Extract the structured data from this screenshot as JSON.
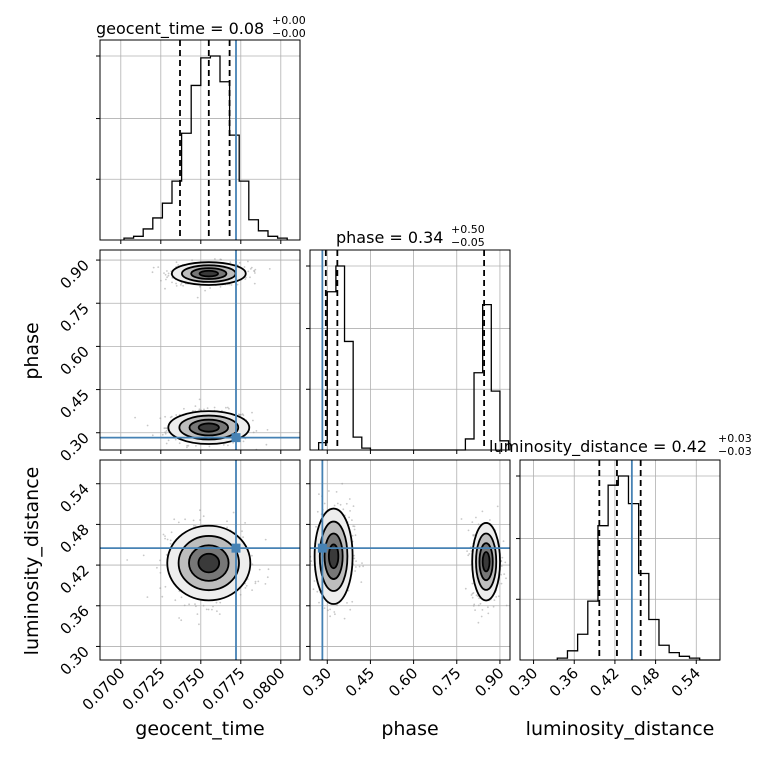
{
  "chart_data": {
    "type": "corner",
    "parameters": [
      "geocent_time",
      "phase",
      "luminosity_distance"
    ],
    "axis_labels": [
      "geocent_time",
      "phase",
      "luminosity_distance"
    ],
    "ranges": {
      "geocent_time": [
        0.0687,
        0.0812
      ],
      "phase": [
        0.24,
        0.935
      ],
      "luminosity_distance": [
        0.28,
        0.575
      ]
    },
    "ticks": {
      "geocent_time": [
        "0.0700",
        "0.0725",
        "0.0750",
        "0.0775",
        "0.0800"
      ],
      "phase": [
        "0.30",
        "0.45",
        "0.60",
        "0.75",
        "0.90"
      ],
      "luminosity_distance": [
        "0.30",
        "0.36",
        "0.42",
        "0.48",
        "0.54"
      ]
    },
    "truths": {
      "geocent_time": 0.0772,
      "phase": 0.283,
      "luminosity_distance": 0.445
    },
    "titles": {
      "geocent_time": {
        "text": "geocent_time = 0.08",
        "plus": "+0.00",
        "minus": "−0.00"
      },
      "phase": {
        "text": "phase = 0.34",
        "plus": "+0.50",
        "minus": "−0.05"
      },
      "luminosity_distance": {
        "text": "luminosity_distance = 0.42",
        "plus": "+0.03",
        "minus": "−0.03"
      }
    },
    "quantiles": {
      "geocent_time": [
        0.0737,
        0.0755,
        0.0768
      ],
      "phase": [
        0.295,
        0.335,
        0.845
      ],
      "luminosity_distance": [
        0.397,
        0.423,
        0.458
      ]
    },
    "histograms": {
      "geocent_time": {
        "edges": [
          0.0702,
          0.0708,
          0.0714,
          0.072,
          0.0726,
          0.0732,
          0.0738,
          0.0744,
          0.075,
          0.0756,
          0.0762,
          0.0768,
          0.0774,
          0.078,
          0.0786,
          0.0792,
          0.0798,
          0.0804
        ],
        "counts": [
          0.01,
          0.02,
          0.06,
          0.12,
          0.2,
          0.32,
          0.58,
          0.84,
          0.99,
          1.0,
          0.86,
          0.57,
          0.32,
          0.11,
          0.05,
          0.02,
          0.01
        ]
      },
      "phase": {
        "edges": [
          0.27,
          0.3,
          0.33,
          0.36,
          0.39,
          0.42,
          0.45,
          0.48,
          0.51,
          0.54,
          0.57,
          0.6,
          0.63,
          0.66,
          0.69,
          0.72,
          0.75,
          0.78,
          0.81,
          0.84,
          0.87,
          0.9,
          0.93
        ],
        "counts": [
          0.04,
          0.86,
          1.0,
          0.59,
          0.07,
          0.01,
          0,
          0,
          0,
          0,
          0,
          0,
          0,
          0,
          0,
          0,
          0,
          0.06,
          0.42,
          0.79,
          0.32,
          0.05
        ]
      },
      "luminosity_distance": {
        "edges": [
          0.335,
          0.35,
          0.365,
          0.38,
          0.395,
          0.41,
          0.425,
          0.44,
          0.455,
          0.47,
          0.485,
          0.5,
          0.515,
          0.53,
          0.545,
          0.56,
          0.575
        ],
        "counts": [
          0.01,
          0.05,
          0.14,
          0.32,
          0.73,
          0.95,
          1.0,
          0.85,
          0.47,
          0.22,
          0.08,
          0.04,
          0.02,
          0.01,
          0.0,
          0.0
        ]
      }
    },
    "contours": [
      {
        "x": "geocent_time",
        "y": "phase",
        "blobs": [
          {
            "cx": 0.0755,
            "cy": 0.318,
            "sx": 0.00115,
            "sy": 0.026
          },
          {
            "cx": 0.0755,
            "cy": 0.853,
            "sx": 0.00105,
            "sy": 0.018
          }
        ]
      },
      {
        "x": "geocent_time",
        "y": "luminosity_distance",
        "blobs": [
          {
            "cx": 0.0755,
            "cy": 0.423,
            "sx": 0.00118,
            "sy": 0.025
          }
        ]
      },
      {
        "x": "phase",
        "y": "luminosity_distance",
        "blobs": [
          {
            "cx": 0.322,
            "cy": 0.433,
            "sx": 0.03,
            "sy": 0.032
          },
          {
            "cx": 0.852,
            "cy": 0.425,
            "sx": 0.022,
            "sy": 0.026
          }
        ]
      }
    ],
    "grid": true,
    "colors": {
      "truth": "#4682b4",
      "hist": "#000000",
      "density": "#555555",
      "grid": "#b0b0b0"
    }
  }
}
